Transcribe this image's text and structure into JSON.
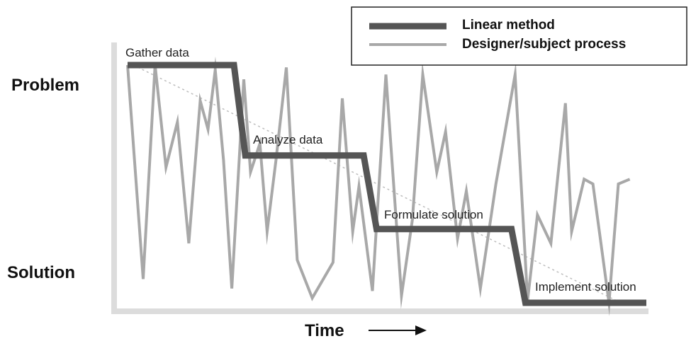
{
  "chart_data": {
    "type": "line",
    "xlabel": "Time",
    "y_top_label": "Problem",
    "y_bottom_label": "Solution",
    "legend_position": "top-right",
    "legend": [
      {
        "name": "Linear method",
        "color": "#555555"
      },
      {
        "name": "Designer/subject process",
        "color": "#a8a8a8"
      }
    ],
    "stages": [
      {
        "label": "Gather data",
        "level": 1.0
      },
      {
        "label": "Analyze data",
        "level": 0.62
      },
      {
        "label": "Formulate solution",
        "level": 0.31
      },
      {
        "label": "Implement solution",
        "level": 0.0
      }
    ],
    "xlim": [
      0,
      100
    ],
    "ylim": [
      0,
      1
    ],
    "series": [
      {
        "name": "Linear method",
        "color": "#555555",
        "x": [
          0,
          20.5,
          22.7,
          45.5,
          48,
          74,
          76.7,
          100
        ],
        "y": [
          1.0,
          1.0,
          0.62,
          0.62,
          0.31,
          0.31,
          0.0,
          0.0
        ]
      },
      {
        "name": "Designer/subject process",
        "color": "#a8a8a8",
        "x": [
          0,
          3.0,
          5.3,
          7.4,
          9.6,
          11.8,
          14.0,
          15.5,
          16.9,
          18.5,
          20.1,
          22.4,
          23.7,
          25.5,
          26.9,
          28.6,
          30.6,
          32.7,
          35.6,
          39.6,
          41.4,
          43.4,
          44.6,
          47.2,
          49.8,
          52.8,
          54.9,
          56.9,
          59.6,
          61.3,
          63.6,
          65.3,
          68.0,
          71.0,
          74.7,
          77.1,
          79.0,
          81.6,
          84.4,
          85.6,
          88.0,
          89.7,
          92.8,
          94.6,
          96.8
        ],
        "y": [
          1.0,
          0.1,
          1.0,
          0.57,
          0.76,
          0.25,
          0.85,
          0.73,
          0.98,
          0.6,
          0.06,
          0.94,
          0.55,
          0.67,
          0.3,
          0.6,
          0.99,
          0.18,
          0.02,
          0.17,
          0.86,
          0.3,
          0.49,
          0.05,
          0.96,
          0.03,
          0.35,
          0.96,
          0.55,
          0.72,
          0.27,
          0.47,
          0.06,
          0.5,
          0.96,
          0.01,
          0.37,
          0.25,
          0.84,
          0.3,
          0.52,
          0.5,
          0.0,
          0.5,
          0.52
        ]
      }
    ]
  }
}
